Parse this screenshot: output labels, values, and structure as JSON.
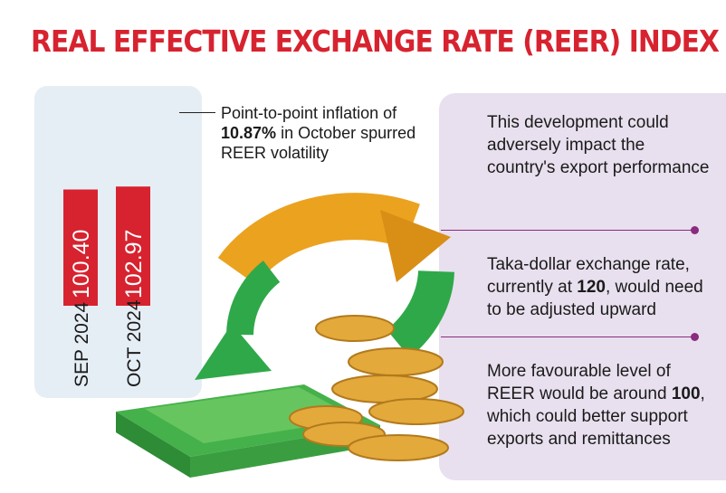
{
  "title": "REAL EFFECTIVE EXCHANGE RATE (REER) INDEX",
  "chart_data": {
    "type": "bar",
    "categories": [
      "SEP 2024",
      "OCT 2024"
    ],
    "values": [
      100.4,
      102.97
    ],
    "value_labels": [
      "100.40",
      "102.97"
    ],
    "bar_color": "#d7232f"
  },
  "annotation": {
    "text_before": "Point-to-point inflation of",
    "highlight": "10.87%",
    "text_after": " in October spurred REER volatility"
  },
  "points": [
    {
      "text_before": "This development could adversely impact the country's export performance",
      "highlight": "",
      "text_after": ""
    },
    {
      "text_before": "Taka-dollar exchange rate, currently at ",
      "highlight": "120",
      "text_after": ", would need to be adjusted upward"
    },
    {
      "text_before": "More favourable level of REER would be around ",
      "highlight": "100",
      "text_after": ", which could better support exports and remittances"
    }
  ],
  "colors": {
    "accent": "#d7232f",
    "divider": "#8a2b7f",
    "arrow_orange": "#eba21f",
    "arrow_green": "#2fa84a",
    "coin": "#e3a93a",
    "cash": "#45b14a"
  }
}
